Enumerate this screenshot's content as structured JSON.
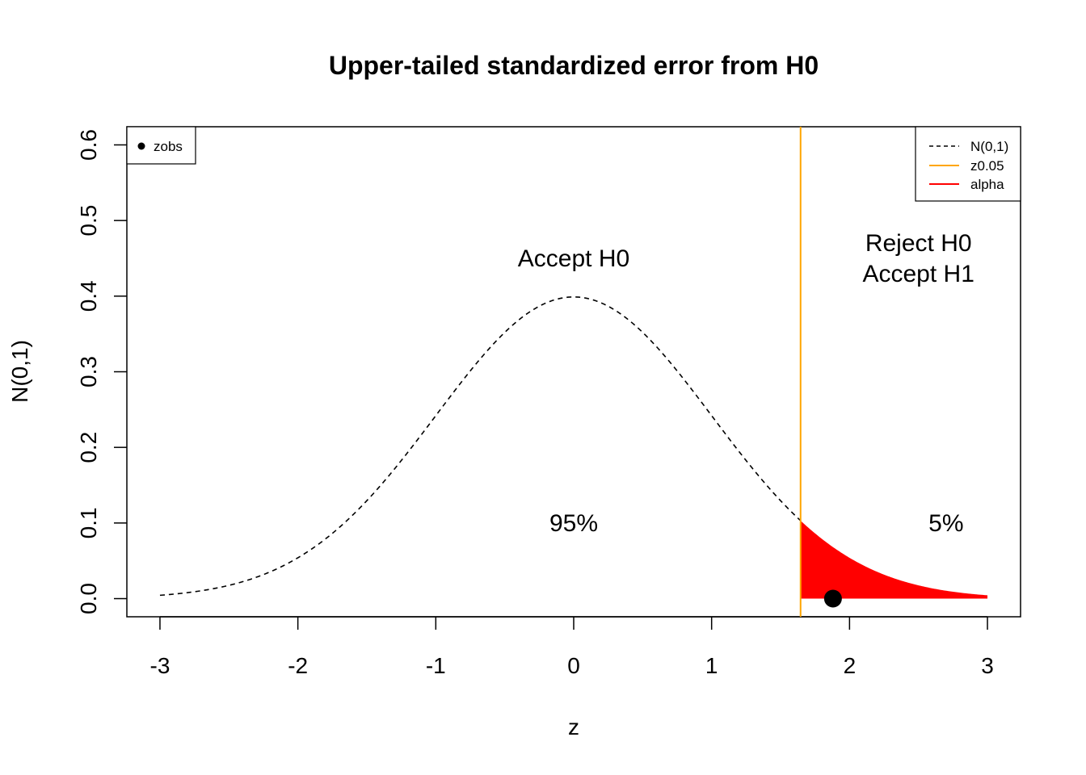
{
  "chart_data": {
    "type": "line",
    "title": "Upper-tailed standardized error from H0",
    "xlabel": "z",
    "ylabel": "N(0,1)",
    "xlim": [
      -3.24,
      3.24
    ],
    "ylim": [
      -0.024,
      0.624
    ],
    "x_ticks": [
      -3,
      -2,
      -1,
      0,
      1,
      2,
      3
    ],
    "y_ticks": [
      0.0,
      0.1,
      0.2,
      0.3,
      0.4,
      0.5,
      0.6
    ],
    "x_tick_labels": [
      "-3",
      "-2",
      "-1",
      "0",
      "1",
      "2",
      "3"
    ],
    "y_tick_labels": [
      "0.0",
      "0.1",
      "0.2",
      "0.3",
      "0.4",
      "0.5",
      "0.6"
    ],
    "grid": false,
    "series": [
      {
        "name": "N(0,1)",
        "style": "dashed",
        "color": "#000000",
        "x": [
          -3.0,
          -2.75,
          -2.5,
          -2.25,
          -2.0,
          -1.75,
          -1.5,
          -1.25,
          -1.0,
          -0.75,
          -0.5,
          -0.25,
          0.0,
          0.25,
          0.5,
          0.75,
          1.0,
          1.25,
          1.5,
          1.645
        ],
        "y": [
          0.0044,
          0.0091,
          0.0175,
          0.0317,
          0.054,
          0.0863,
          0.1295,
          0.1826,
          0.242,
          0.3011,
          0.3521,
          0.3867,
          0.3989,
          0.3867,
          0.3521,
          0.3011,
          0.242,
          0.1826,
          0.1295,
          0.1031
        ]
      },
      {
        "name": "alpha",
        "style": "filled-area",
        "color": "#ff0000",
        "x": [
          1.645,
          1.75,
          2.0,
          2.25,
          2.5,
          2.75,
          3.0
        ],
        "y": [
          0.1031,
          0.0863,
          0.054,
          0.0317,
          0.0175,
          0.0091,
          0.0044
        ]
      }
    ],
    "critical_line": {
      "name": "z0.05",
      "x": 1.645,
      "color": "#ffa500"
    },
    "point": {
      "name": "zobs",
      "x": 1.88,
      "y": 0.0,
      "color": "#000000"
    },
    "annotations": [
      {
        "id": "accept-h0",
        "x": 0.0,
        "y": 0.45,
        "lines": [
          "Accept H0"
        ]
      },
      {
        "id": "reject-h0",
        "x": 2.5,
        "y": 0.45,
        "lines": [
          "Reject H0",
          "Accept H1"
        ]
      },
      {
        "id": "pct-95",
        "x": 0.0,
        "y": 0.1,
        "lines": [
          "95%"
        ]
      },
      {
        "id": "pct-5",
        "x": 2.7,
        "y": 0.1,
        "lines": [
          "5%"
        ]
      }
    ],
    "legend_main": {
      "placement": "top-right",
      "entries": [
        {
          "label": "N(0,1)",
          "kind": "line-dashed",
          "color": "#000000"
        },
        {
          "label": "z0.05",
          "kind": "line",
          "color": "#ffa500"
        },
        {
          "label": "alpha",
          "kind": "line",
          "color": "#ff0000"
        }
      ]
    },
    "legend_point": {
      "placement": "top-left",
      "entries": [
        {
          "label": "zobs",
          "kind": "point",
          "color": "#000000"
        }
      ]
    }
  }
}
